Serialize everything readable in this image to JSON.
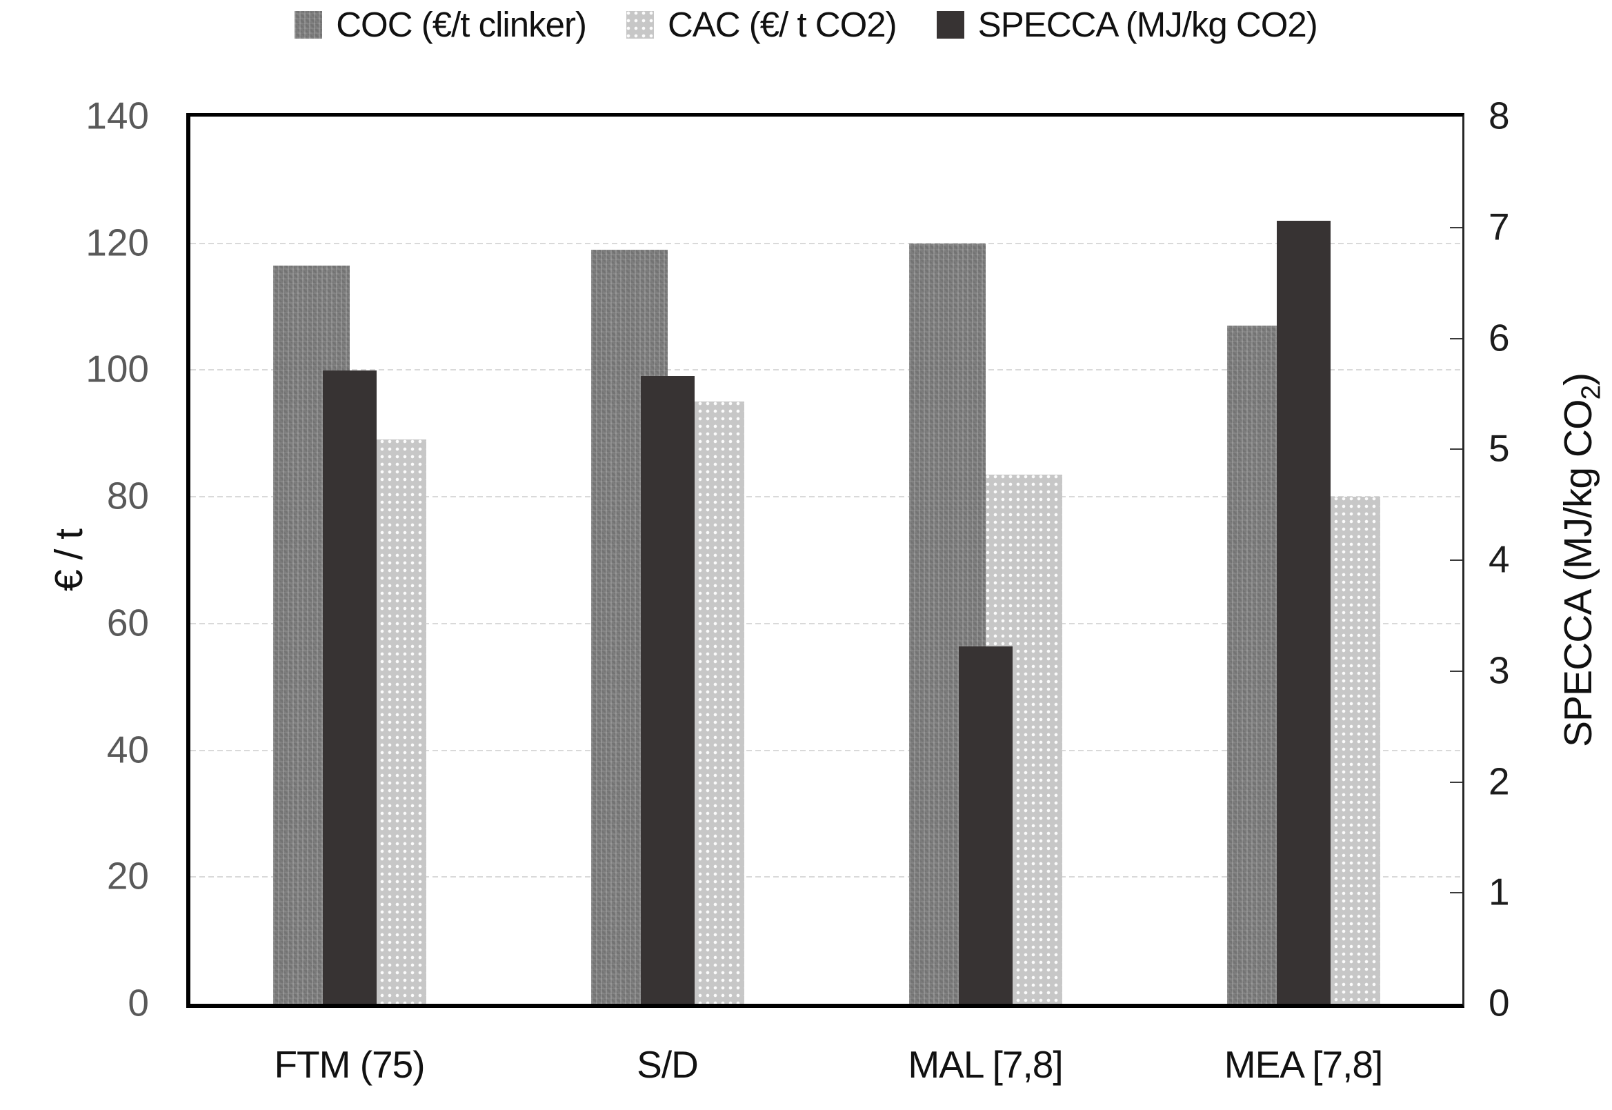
{
  "legend": {
    "items": [
      {
        "label": "COC (€/t clinker)",
        "series": "coc"
      },
      {
        "label": "CAC (€/ t CO2)",
        "series": "cac"
      },
      {
        "label": "SPECCA (MJ/kg CO2)",
        "series": "specca"
      }
    ]
  },
  "left_axis": {
    "title": "€ / t",
    "min": 0,
    "max": 140,
    "step": 20,
    "tick_labels": [
      "0",
      "20",
      "40",
      "60",
      "80",
      "100",
      "120",
      "140"
    ]
  },
  "right_axis": {
    "title_prefix": "SPECCA (MJ/kg CO",
    "title_sub": "2",
    "title_suffix": ")",
    "min": 0,
    "max": 8,
    "step": 1,
    "tick_labels": [
      "0",
      "1",
      "2",
      "3",
      "4",
      "5",
      "6",
      "7",
      "8"
    ]
  },
  "x_axis": {
    "categories": [
      "FTM (75)",
      "S/D",
      "MAL [7,8]",
      "MEA [7,8]"
    ]
  },
  "colors": {
    "coc": "#7c7c7c",
    "cac": "#c7c7c7",
    "specca": "#373333",
    "grid": "#d9d9d9",
    "left_tick_text": "#595959",
    "axis_text": "#1c1c1c"
  },
  "chart_data": {
    "type": "bar",
    "categories": [
      "FTM (75)",
      "S/D",
      "MAL [7,8]",
      "MEA [7,8]"
    ],
    "series": [
      {
        "name": "COC (€/t clinker)",
        "axis": "left",
        "color_key": "coc",
        "values": [
          116.5,
          119,
          120,
          107
        ]
      },
      {
        "name": "CAC (€/ t CO2)",
        "axis": "left",
        "color_key": "cac",
        "values": [
          89,
          95,
          83.5,
          80
        ]
      },
      {
        "name": "SPECCA (MJ/kg CO2)",
        "axis": "right",
        "color_key": "specca",
        "values": [
          5.71,
          5.66,
          3.22,
          7.06
        ]
      }
    ],
    "left_ylabel": "€ / t",
    "right_ylabel": "SPECCA (MJ/kg CO2)",
    "left_ylim": [
      0,
      140
    ],
    "right_ylim": [
      0,
      8
    ],
    "grid": true,
    "gridline_values_left_axis": [
      20,
      40,
      60,
      80,
      100,
      120
    ],
    "legend_position": "top"
  }
}
